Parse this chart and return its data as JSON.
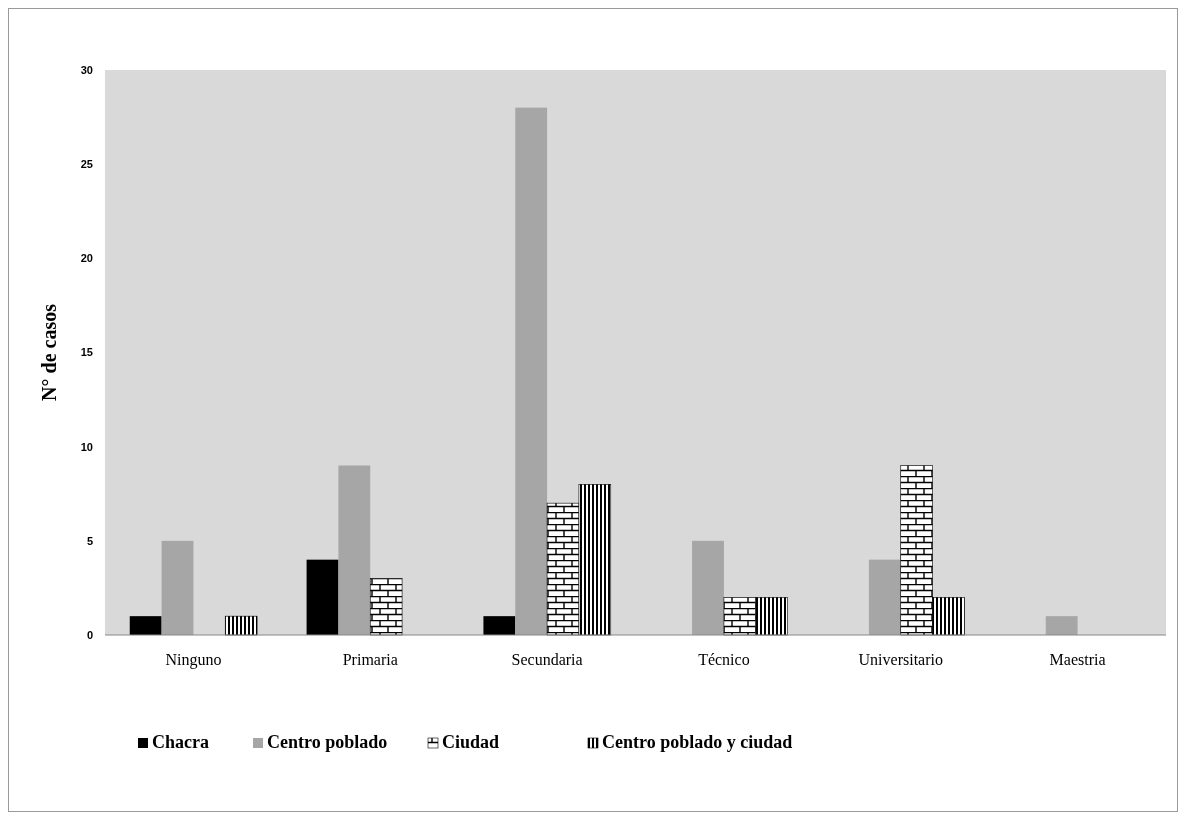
{
  "chart_data": {
    "type": "bar",
    "ylabel": "N° de casos",
    "categories": [
      "Ninguno",
      "Primaria",
      "Secundaria",
      "Técnico",
      "Universitario",
      "Maestria"
    ],
    "series": [
      {
        "name": "Chacra",
        "color": "#000000",
        "values": [
          1,
          4,
          1,
          0,
          0,
          0
        ]
      },
      {
        "name": "Centro poblado",
        "color": "#a6a6a6",
        "values": [
          5,
          9,
          28,
          5,
          4,
          1
        ]
      },
      {
        "name": "Ciudad",
        "color": "#000000",
        "values": [
          0,
          3,
          7,
          2,
          9,
          0
        ]
      },
      {
        "name": "Centro poblado y ciudad",
        "color": "#000000",
        "values": [
          1,
          0,
          8,
          2,
          2,
          0
        ]
      }
    ],
    "ylim": [
      0,
      30
    ],
    "yticks": [
      0,
      5,
      10,
      15,
      20,
      25,
      30
    ],
    "grid": false,
    "legend": "bottom"
  }
}
